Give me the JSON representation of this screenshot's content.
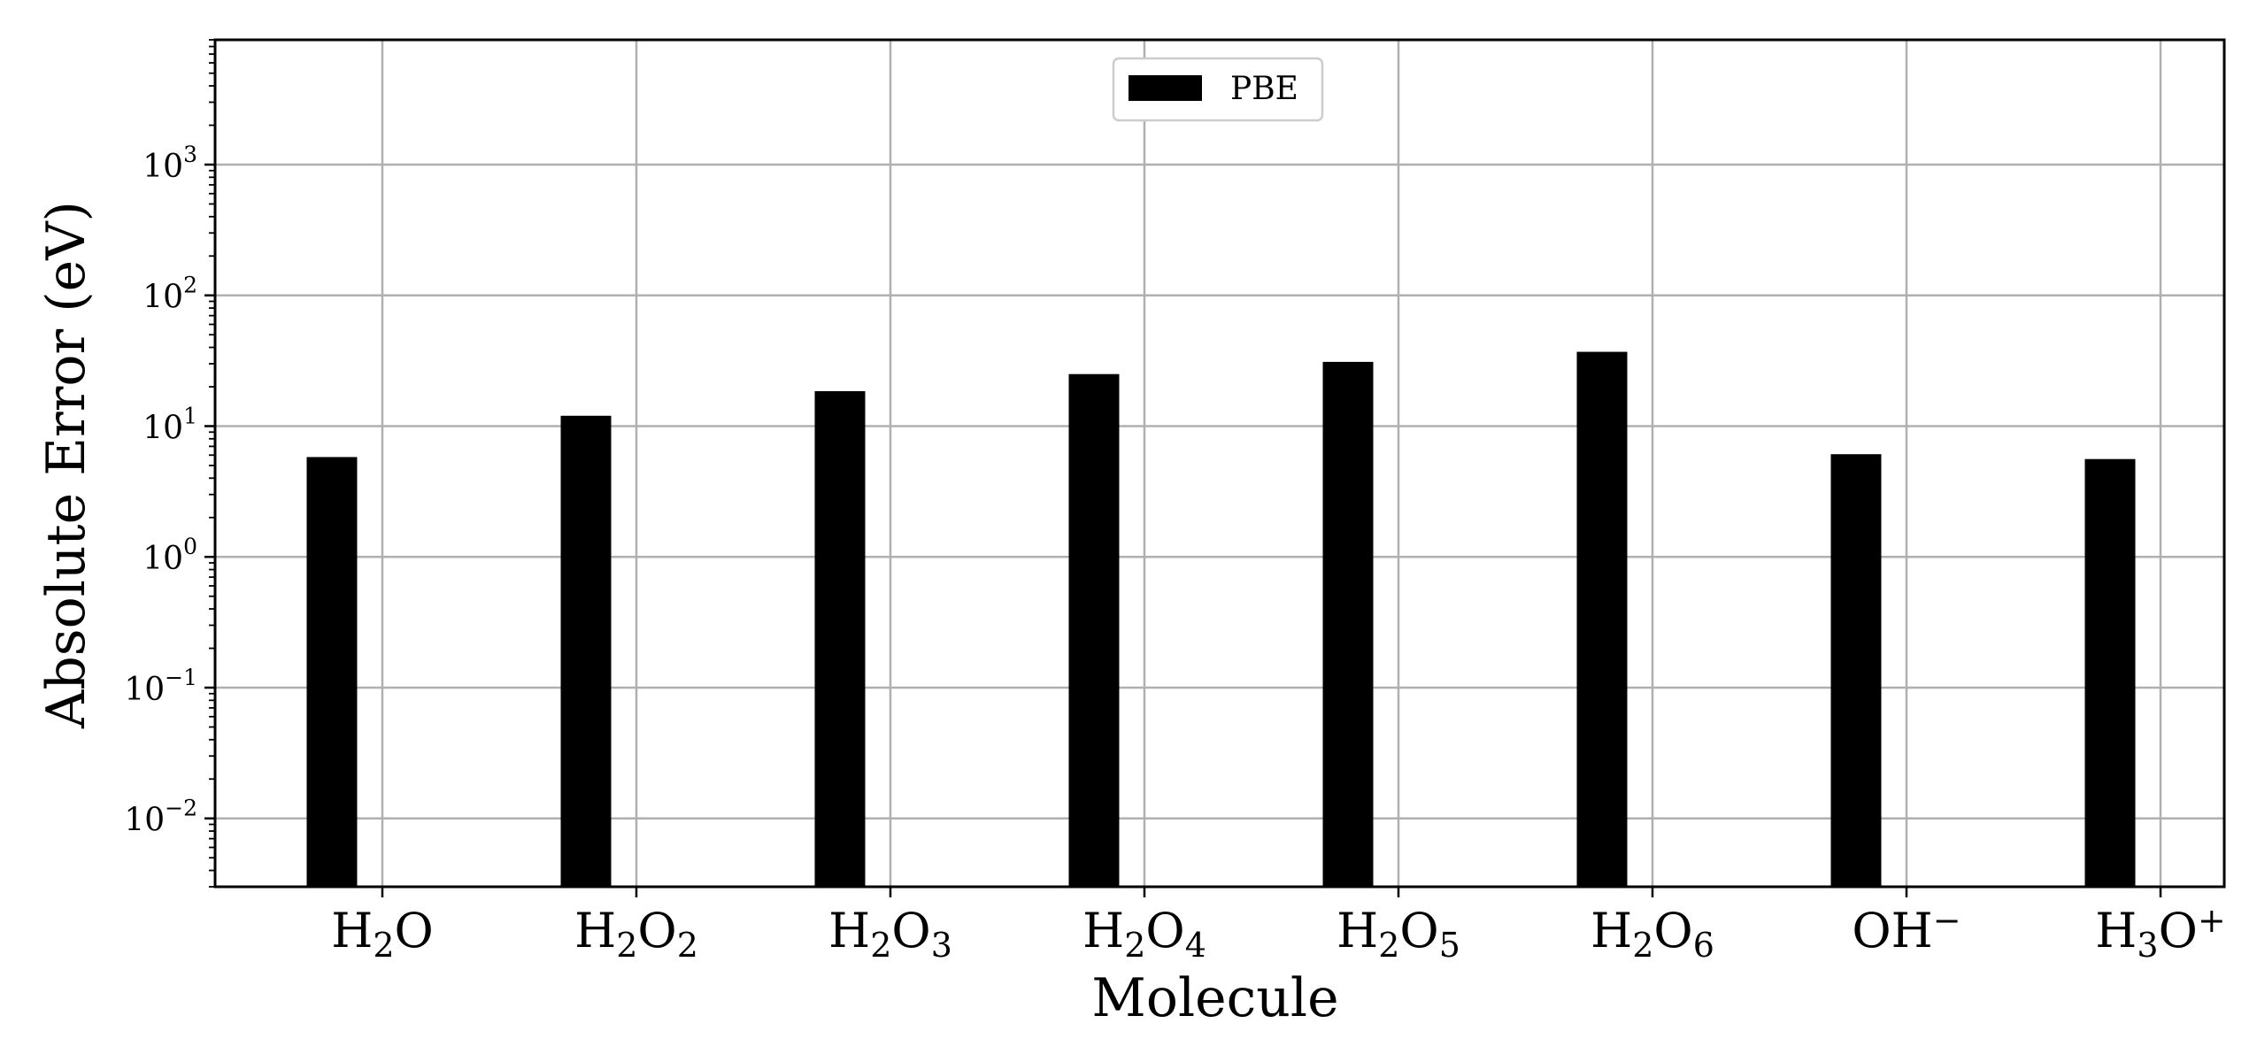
{
  "chart_data": {
    "type": "bar",
    "xlabel": "Molecule",
    "ylabel": "Absolute Error (eV)",
    "yscale": "log",
    "ylim": [
      0.003,
      9000
    ],
    "y_ticks": [
      {
        "base": "10",
        "exp": "3",
        "value": 1000
      },
      {
        "base": "10",
        "exp": "2",
        "value": 100
      },
      {
        "base": "10",
        "exp": "1",
        "value": 10
      },
      {
        "base": "10",
        "exp": "0",
        "value": 1
      },
      {
        "base": "10",
        "exp": "−1",
        "value": 0.1
      },
      {
        "base": "10",
        "exp": "−2",
        "value": 0.01
      }
    ],
    "categories": [
      {
        "label": "H2O",
        "parts": [
          [
            "H",
            ""
          ],
          [
            "2",
            "sub"
          ],
          [
            "O",
            ""
          ]
        ]
      },
      {
        "label": "H2O2",
        "parts": [
          [
            "H",
            ""
          ],
          [
            "2",
            "sub"
          ],
          [
            "O",
            ""
          ],
          [
            "2",
            "sub"
          ]
        ]
      },
      {
        "label": "H2O3",
        "parts": [
          [
            "H",
            ""
          ],
          [
            "2",
            "sub"
          ],
          [
            "O",
            ""
          ],
          [
            "3",
            "sub"
          ]
        ]
      },
      {
        "label": "H2O4",
        "parts": [
          [
            "H",
            ""
          ],
          [
            "2",
            "sub"
          ],
          [
            "O",
            ""
          ],
          [
            "4",
            "sub"
          ]
        ]
      },
      {
        "label": "H2O5",
        "parts": [
          [
            "H",
            ""
          ],
          [
            "2",
            "sub"
          ],
          [
            "O",
            ""
          ],
          [
            "5",
            "sub"
          ]
        ]
      },
      {
        "label": "H2O6",
        "parts": [
          [
            "H",
            ""
          ],
          [
            "2",
            "sub"
          ],
          [
            "O",
            ""
          ],
          [
            "6",
            "sub"
          ]
        ]
      },
      {
        "label": "OH−",
        "parts": [
          [
            "OH",
            ""
          ],
          [
            "−",
            "sup"
          ]
        ]
      },
      {
        "label": "H3O+",
        "parts": [
          [
            "H",
            ""
          ],
          [
            "3",
            "sub"
          ],
          [
            "O",
            ""
          ],
          [
            "+",
            "sup"
          ]
        ]
      }
    ],
    "series": [
      {
        "name": "PBE",
        "color": "#000000",
        "values": [
          5.8,
          12.0,
          18.5,
          25.0,
          31.0,
          37.0,
          6.1,
          5.6
        ]
      }
    ],
    "grid": true,
    "legend_position": "top-center"
  }
}
